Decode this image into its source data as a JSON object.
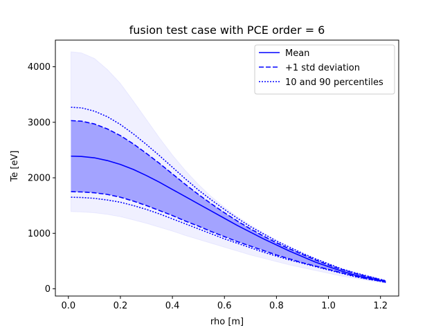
{
  "chart_data": {
    "type": "line",
    "title": "fusion test case with PCE order = 6",
    "xlabel": "rho [m]",
    "ylabel": "Te [eV]",
    "xlim": [
      -0.05,
      1.27
    ],
    "ylim": [
      -130,
      4480
    ],
    "xticks": [
      0.0,
      0.2,
      0.4,
      0.6,
      0.8,
      1.0,
      1.2
    ],
    "xtick_labels": [
      "0.0",
      "0.2",
      "0.4",
      "0.6",
      "0.8",
      "1.0",
      "1.2"
    ],
    "yticks": [
      0,
      1000,
      2000,
      3000,
      4000
    ],
    "ytick_labels": [
      "0",
      "1000",
      "2000",
      "3000",
      "4000"
    ],
    "grid": false,
    "legend_position": "top-right",
    "x": [
      0.01,
      0.05,
      0.1,
      0.15,
      0.2,
      0.25,
      0.3,
      0.35,
      0.4,
      0.45,
      0.5,
      0.55,
      0.6,
      0.65,
      0.7,
      0.75,
      0.8,
      0.85,
      0.9,
      0.95,
      1.0,
      1.05,
      1.1,
      1.15,
      1.2,
      1.22
    ],
    "series": [
      {
        "name": "Mean",
        "style": "solid",
        "values": [
          2390,
          2385,
          2360,
          2310,
          2240,
          2150,
          2040,
          1920,
          1790,
          1660,
          1530,
          1400,
          1270,
          1140,
          1020,
          900,
          790,
          680,
          580,
          480,
          400,
          320,
          250,
          200,
          150,
          130
        ]
      },
      {
        "name": "+1 std deviation",
        "style": "dashed",
        "values": [
          3030,
          3020,
          2970,
          2880,
          2760,
          2610,
          2440,
          2260,
          2070,
          1880,
          1700,
          1530,
          1370,
          1220,
          1080,
          950,
          830,
          720,
          620,
          520,
          430,
          350,
          280,
          220,
          165,
          140
        ]
      },
      {
        "name": "",
        "style": "dashed",
        "values": [
          1750,
          1745,
          1730,
          1700,
          1650,
          1580,
          1500,
          1410,
          1320,
          1220,
          1130,
          1030,
          940,
          850,
          770,
          690,
          610,
          540,
          470,
          410,
          350,
          290,
          230,
          180,
          140,
          120
        ]
      },
      {
        "name": "10 and 90 percentiles",
        "style": "dotted",
        "values": [
          3270,
          3260,
          3200,
          3100,
          2960,
          2790,
          2600,
          2400,
          2190,
          1980,
          1780,
          1600,
          1430,
          1270,
          1120,
          990,
          860,
          750,
          640,
          540,
          450,
          360,
          290,
          230,
          170,
          145
        ]
      },
      {
        "name": "",
        "style": "dotted",
        "values": [
          1650,
          1645,
          1630,
          1600,
          1560,
          1500,
          1430,
          1350,
          1260,
          1170,
          1080,
          990,
          900,
          820,
          740,
          660,
          590,
          520,
          460,
          400,
          340,
          280,
          220,
          175,
          135,
          115
        ]
      }
    ],
    "bands": [
      {
        "kind": "min-max",
        "upper": [
          4270,
          4250,
          4150,
          3950,
          3700,
          3380,
          3050,
          2720,
          2410,
          2130,
          1880,
          1660,
          1470,
          1300,
          1150,
          1010,
          880,
          760,
          650,
          550,
          460,
          370,
          300,
          240,
          180,
          150
        ],
        "lower": [
          1390,
          1385,
          1370,
          1340,
          1300,
          1240,
          1180,
          1110,
          1040,
          960,
          890,
          820,
          750,
          680,
          610,
          550,
          490,
          430,
          380,
          330,
          280,
          230,
          190,
          150,
          115,
          100
        ]
      }
    ],
    "colors": {
      "line": "#0000ff",
      "band_inner": "#0000ff",
      "band_outer": "#0000ff"
    }
  }
}
